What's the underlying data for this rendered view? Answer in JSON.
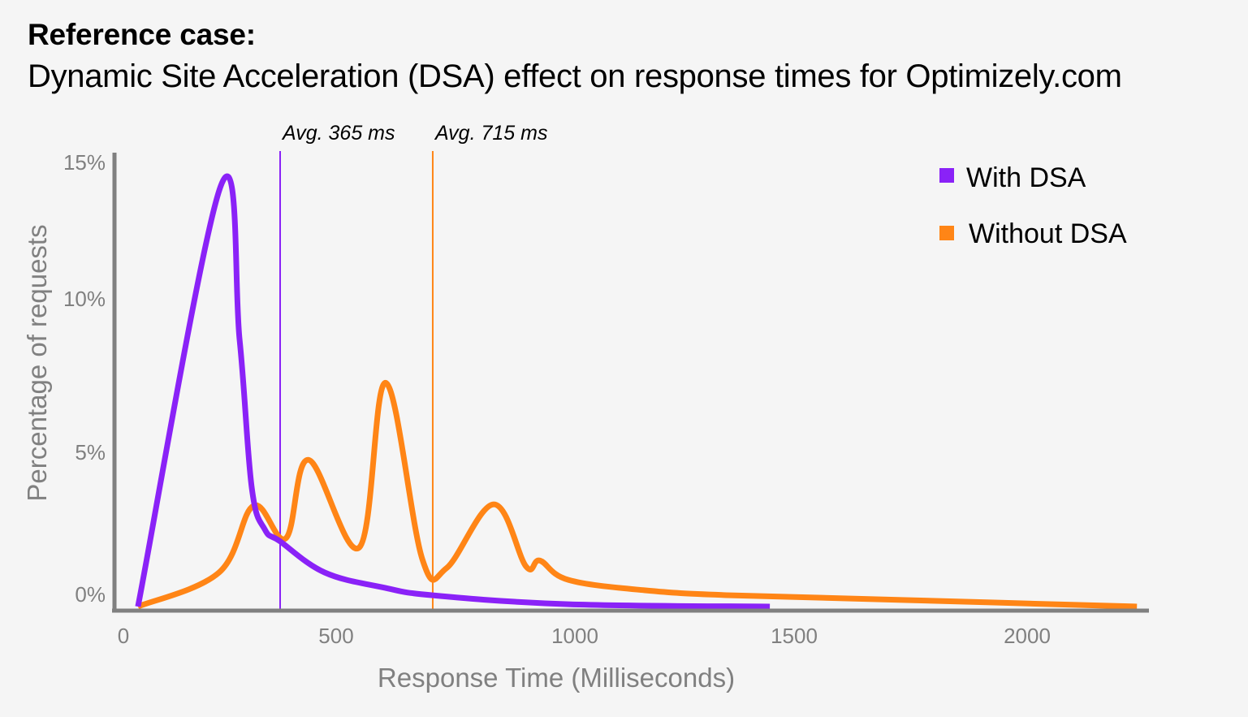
{
  "header": {
    "title": "Reference case:",
    "subtitle": "Dynamic Site Acceleration (DSA) effect on response times for Optimizely.com"
  },
  "chart_data": {
    "type": "line",
    "title": "Reference case:",
    "subtitle": "Dynamic Site Acceleration (DSA) effect on response times for Optimizely.com",
    "xlabel": "Response Time (Milliseconds)",
    "ylabel": "Percentage of requests",
    "xlim": [
      0,
      2350
    ],
    "ylim": [
      0,
      15
    ],
    "x_ticks": [
      0,
      500,
      1000,
      1500,
      2000
    ],
    "x_tick_labels": [
      "0",
      "500",
      "1000",
      "1500",
      "2000"
    ],
    "y_ticks": [
      0,
      5,
      10,
      15
    ],
    "y_tick_labels": [
      "0%",
      "5%",
      "10%",
      "15%"
    ],
    "grid": false,
    "legend_position": "top-right",
    "series": [
      {
        "name": "With DSA",
        "color": "#8a22f7",
        "points": [
          [
            39,
            0
          ],
          [
            229,
            14.2
          ],
          [
            272,
            9.0
          ],
          [
            300,
            4.0
          ],
          [
            330,
            2.6
          ],
          [
            365,
            2.2
          ],
          [
            467,
            1.15
          ],
          [
            600,
            0.65
          ],
          [
            715,
            0.38
          ],
          [
            1026,
            0.08
          ],
          [
            1488,
            0.0
          ]
        ],
        "average_ms": 365,
        "average_label": "Avg. 365 ms"
      },
      {
        "name": "Without DSA",
        "color": "#ff8516",
        "points": [
          [
            39,
            0
          ],
          [
            225,
            1.15
          ],
          [
            304,
            3.4
          ],
          [
            378,
            2.3
          ],
          [
            430,
            4.95
          ],
          [
            547,
            2.0
          ],
          [
            607,
            7.55
          ],
          [
            691,
            1.6
          ],
          [
            747,
            1.3
          ],
          [
            855,
            3.45
          ],
          [
            929,
            1.35
          ],
          [
            961,
            1.55
          ],
          [
            1026,
            0.9
          ],
          [
            1200,
            0.55
          ],
          [
            1398,
            0.38
          ],
          [
            1800,
            0.22
          ],
          [
            2330,
            0.0
          ]
        ],
        "average_ms": 715,
        "average_label": "Avg. 715 ms"
      }
    ],
    "annotations": [
      {
        "text": "Avg. 365 ms",
        "x": 365,
        "series": "With DSA"
      },
      {
        "text": "Avg. 715 ms",
        "x": 715,
        "series": "Without DSA"
      }
    ]
  },
  "legend": {
    "items": [
      {
        "label": "With DSA",
        "color": "#8a22f7"
      },
      {
        "label": "Without DSA",
        "color": "#ff8516"
      }
    ]
  },
  "colors": {
    "background": "#f5f5f5",
    "axis": "#808080",
    "with_dsa": "#8a22f7",
    "without_dsa": "#ff8516"
  }
}
